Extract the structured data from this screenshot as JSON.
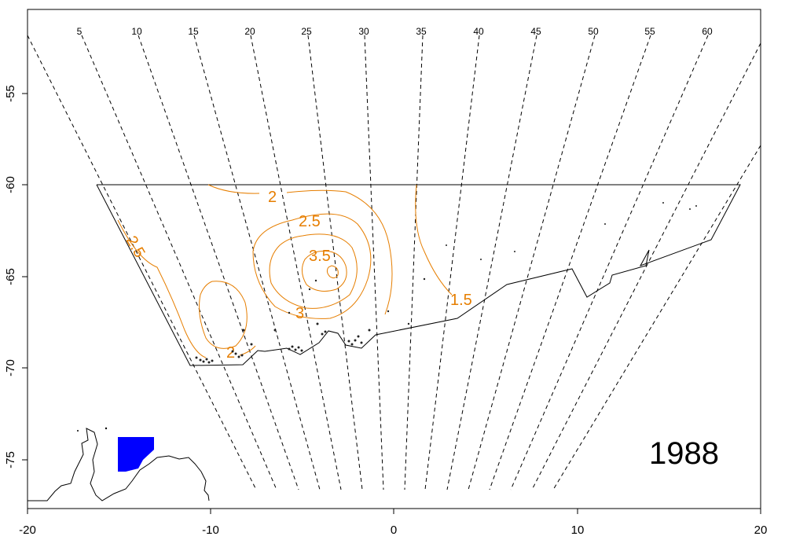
{
  "map": {
    "year": "1988",
    "x_ticks": [
      "-20",
      "-10",
      "0",
      "10",
      "20"
    ],
    "y_ticks": [
      "-55",
      "-60",
      "-65",
      "-70",
      "-75"
    ],
    "meridian_labels": [
      "5",
      "10",
      "15",
      "20",
      "25",
      "30",
      "35",
      "40",
      "45",
      "50",
      "55",
      "60"
    ],
    "contour_labels": [
      "2",
      "2.5",
      "3.5",
      "3",
      "2.5",
      "2",
      "1.5"
    ],
    "colors": {
      "contour": "#e67e00",
      "inset_fill": "#0000ff",
      "ink": "#000000"
    }
  }
}
